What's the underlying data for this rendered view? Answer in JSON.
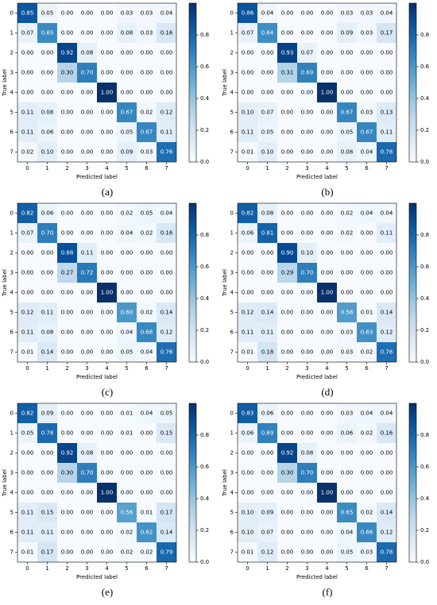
{
  "chart_data": [
    {
      "type": "heatmap",
      "caption": "(a)",
      "xlabel": "Predicted label",
      "ylabel": "True label",
      "x_categories": [
        "0",
        "1",
        "2",
        "3",
        "4",
        "5",
        "6",
        "7"
      ],
      "y_categories": [
        "0",
        "1",
        "2",
        "3",
        "4",
        "5",
        "6",
        "7"
      ],
      "colormap": "Blues",
      "clim": [
        0,
        1
      ],
      "cticks": [
        {
          "value": 0,
          "label": "0.0"
        },
        0.2,
        0.4,
        0.6,
        0.8
      ],
      "values": [
        [
          0.85,
          0.05,
          0,
          0,
          0,
          0.03,
          0.03,
          0.04
        ],
        [
          0.07,
          0.65,
          0,
          0,
          0,
          0.08,
          0.03,
          0.16
        ],
        [
          0,
          0,
          0.92,
          0.08,
          0,
          0,
          0,
          0
        ],
        [
          0,
          0,
          0.3,
          0.7,
          0,
          0,
          0,
          0
        ],
        [
          0,
          0,
          0,
          0,
          1,
          0,
          0,
          0
        ],
        [
          0.11,
          0.08,
          0,
          0,
          0,
          0.67,
          0.02,
          0.12
        ],
        [
          0.11,
          0.06,
          0,
          0,
          0,
          0.05,
          0.67,
          0.11
        ],
        [
          0.02,
          0.1,
          0,
          0,
          0,
          0.09,
          0.03,
          0.76
        ]
      ],
      "value_labels": [
        [
          "0.85",
          "0.05",
          "0.00",
          "0.00",
          "0.00",
          "0.03",
          "0.03",
          "0.04"
        ],
        [
          "0.07",
          "0.65",
          "0.00",
          "0.00",
          "0.00",
          "0.08",
          "0.03",
          "0.16"
        ],
        [
          "0.00",
          "0.00",
          "0.92",
          "0.08",
          "0.00",
          "0.00",
          "0.00",
          "0.00"
        ],
        [
          "0.00",
          "0.00",
          "0.30",
          "0.70",
          "0.00",
          "0.00",
          "0.00",
          "0.00"
        ],
        [
          "0.00",
          "0.00",
          "0.00",
          "0.00",
          "1.00",
          "0.00",
          "0.00",
          "0.00"
        ],
        [
          "0.11",
          "0.08",
          "0.00",
          "0.00",
          "0.00",
          "0.67",
          "0.02",
          "0.12"
        ],
        [
          "0.11",
          "0.06",
          "0.00",
          "0.00",
          "0.00",
          "0.05",
          "0.67",
          "0.11"
        ],
        [
          "0.02",
          "0.10",
          "0.00",
          "0.00",
          "0.00",
          "0.09",
          "0.03",
          "0.76"
        ]
      ]
    },
    {
      "type": "heatmap",
      "caption": "(b)",
      "xlabel": "Predicted label",
      "ylabel": "True label",
      "x_categories": [
        "0",
        "1",
        "2",
        "3",
        "4",
        "5",
        "6",
        "7"
      ],
      "y_categories": [
        "0",
        "1",
        "2",
        "3",
        "4",
        "5",
        "6",
        "7"
      ],
      "colormap": "Blues",
      "clim": [
        0,
        1
      ],
      "cticks": [
        {
          "value": 0,
          "label": "0.0"
        },
        0.2,
        0.4,
        0.6,
        0.8
      ],
      "values": [
        [
          0.86,
          0.04,
          0,
          0,
          0,
          0.03,
          0.03,
          0.04
        ],
        [
          0.07,
          0.64,
          0,
          0,
          0,
          0.09,
          0.03,
          0.17
        ],
        [
          0,
          0,
          0.93,
          0.07,
          0,
          0,
          0,
          0
        ],
        [
          0,
          0,
          0.31,
          0.69,
          0,
          0,
          0,
          0
        ],
        [
          0,
          0,
          0,
          0,
          1,
          0,
          0,
          0
        ],
        [
          0.1,
          0.07,
          0,
          0,
          0,
          0.67,
          0.03,
          0.13
        ],
        [
          0.11,
          0.05,
          0,
          0,
          0,
          0.05,
          0.67,
          0.11
        ],
        [
          0.01,
          0.1,
          0,
          0,
          0,
          0.08,
          0.04,
          0.78
        ]
      ],
      "value_labels": [
        [
          "0.86",
          "0.04",
          "0.00",
          "0.00",
          "0.00",
          "0.03",
          "0.03",
          "0.04"
        ],
        [
          "0.07",
          "0.64",
          "0.00",
          "0.00",
          "0.00",
          "0.09",
          "0.03",
          "0.17"
        ],
        [
          "0.00",
          "0.00",
          "0.93",
          "0.07",
          "0.00",
          "0.00",
          "0.00",
          "0.00"
        ],
        [
          "0.00",
          "0.00",
          "0.31",
          "0.69",
          "0.00",
          "0.00",
          "0.00",
          "0.00"
        ],
        [
          "0.00",
          "0.00",
          "0.00",
          "0.00",
          "1.00",
          "0.00",
          "0.00",
          "0.00"
        ],
        [
          "0.10",
          "0.07",
          "0.00",
          "0.00",
          "0.00",
          "0.67",
          "0.03",
          "0.13"
        ],
        [
          "0.11",
          "0.05",
          "0.00",
          "0.00",
          "0.00",
          "0.05",
          "0.67",
          "0.11"
        ],
        [
          "0.01",
          "0.10",
          "0.00",
          "0.00",
          "0.00",
          "0.08",
          "0.04",
          "0.78"
        ]
      ]
    },
    {
      "type": "heatmap",
      "caption": "(c)",
      "xlabel": "Predicted label",
      "ylabel": "True label",
      "x_categories": [
        "0",
        "1",
        "2",
        "3",
        "4",
        "5",
        "6",
        "7"
      ],
      "y_categories": [
        "0",
        "1",
        "2",
        "3",
        "4",
        "5",
        "6",
        "7"
      ],
      "colormap": "Blues",
      "clim": [
        0,
        1
      ],
      "cticks": [
        {
          "value": 0,
          "label": "0.0"
        },
        0.2,
        0.4,
        0.6,
        0.8
      ],
      "values": [
        [
          0.82,
          0.06,
          0,
          0,
          0,
          0.02,
          0.05,
          0.04
        ],
        [
          0.07,
          0.7,
          0,
          0,
          0,
          0.04,
          0.02,
          0.16
        ],
        [
          0,
          0,
          0.88,
          0.11,
          0,
          0,
          0,
          0
        ],
        [
          0,
          0,
          0.27,
          0.72,
          0,
          0,
          0,
          0
        ],
        [
          0,
          0,
          0,
          0,
          1,
          0,
          0,
          0
        ],
        [
          0.12,
          0.11,
          0,
          0,
          0,
          0.6,
          0.02,
          0.14
        ],
        [
          0.11,
          0.08,
          0,
          0,
          0,
          0.04,
          0.66,
          0.12
        ],
        [
          0.01,
          0.14,
          0,
          0,
          0,
          0.05,
          0.04,
          0.76
        ]
      ],
      "value_labels": [
        [
          "0.82",
          "0.06",
          "0.00",
          "0.00",
          "0.00",
          "0.02",
          "0.05",
          "0.04"
        ],
        [
          "0.07",
          "0.70",
          "0.00",
          "0.00",
          "0.00",
          "0.04",
          "0.02",
          "0.16"
        ],
        [
          "0.00",
          "0.00",
          "0.88",
          "0.11",
          "0.00",
          "0.00",
          "0.00",
          "0.00"
        ],
        [
          "0.00",
          "0.00",
          "0.27",
          "0.72",
          "0.00",
          "0.00",
          "0.00",
          "0.00"
        ],
        [
          "0.00",
          "0.00",
          "0.00",
          "0.00",
          "1.00",
          "0.00",
          "0.00",
          "0.00"
        ],
        [
          "0.12",
          "0.11",
          "0.00",
          "0.00",
          "0.00",
          "0.60",
          "0.02",
          "0.14"
        ],
        [
          "0.11",
          "0.08",
          "0.00",
          "0.00",
          "0.00",
          "0.04",
          "0.66",
          "0.12"
        ],
        [
          "0.01",
          "0.14",
          "0.00",
          "0.00",
          "0.00",
          "0.05",
          "0.04",
          "0.76"
        ]
      ]
    },
    {
      "type": "heatmap",
      "caption": "(d)",
      "xlabel": "Predicted label",
      "ylabel": "True label",
      "x_categories": [
        "0",
        "1",
        "2",
        "3",
        "4",
        "5",
        "6",
        "7"
      ],
      "y_categories": [
        "0",
        "1",
        "2",
        "3",
        "4",
        "5",
        "6",
        "7"
      ],
      "colormap": "Blues",
      "clim": [
        0,
        1
      ],
      "cticks": [
        {
          "value": 0,
          "label": "0.0"
        },
        0.2,
        0.4,
        0.6,
        0.8
      ],
      "values": [
        [
          0.82,
          0.08,
          0,
          0,
          0,
          0.02,
          0.04,
          0.04
        ],
        [
          0.06,
          0.81,
          0,
          0,
          0,
          0.02,
          0,
          0.11
        ],
        [
          0,
          0,
          0.9,
          0.1,
          0,
          0,
          0,
          0
        ],
        [
          0,
          0,
          0.29,
          0.7,
          0,
          0,
          0,
          0
        ],
        [
          0,
          0,
          0,
          0,
          1,
          0,
          0,
          0
        ],
        [
          0.12,
          0.14,
          0,
          0,
          0,
          0.58,
          0.01,
          0.14
        ],
        [
          0.11,
          0.11,
          0,
          0,
          0,
          0.03,
          0.63,
          0.12
        ],
        [
          0.01,
          0.18,
          0,
          0,
          0,
          0.03,
          0.02,
          0.76
        ]
      ],
      "value_labels": [
        [
          "0.82",
          "0.08",
          "0.00",
          "0.00",
          "0.00",
          "0.02",
          "0.04",
          "0.04"
        ],
        [
          "0.06",
          "0.81",
          "0.00",
          "0.00",
          "0.00",
          "0.02",
          "0.00",
          "0.11"
        ],
        [
          "0.00",
          "0.00",
          "0.90",
          "0.10",
          "0.00",
          "0.00",
          "0.00",
          "0.00"
        ],
        [
          "0.00",
          "0.00",
          "0.29",
          "0.70",
          "0.00",
          "0.00",
          "0.00",
          "0.00"
        ],
        [
          "0.00",
          "0.00",
          "0.00",
          "0.00",
          "1.00",
          "0.00",
          "0.00",
          "0.00"
        ],
        [
          "0.12",
          "0.14",
          "0.00",
          "0.00",
          "0.00",
          "0.58",
          "0.01",
          "0.14"
        ],
        [
          "0.11",
          "0.11",
          "0.00",
          "0.00",
          "0.00",
          "0.03",
          "0.63",
          "0.12"
        ],
        [
          "0.01",
          "0.18",
          "0.00",
          "0.00",
          "0.00",
          "0.03",
          "0.02",
          "0.76"
        ]
      ]
    },
    {
      "type": "heatmap",
      "caption": "(e)",
      "xlabel": "Predicted label",
      "ylabel": "True label",
      "x_categories": [
        "0",
        "1",
        "2",
        "3",
        "4",
        "5",
        "6",
        "7"
      ],
      "y_categories": [
        "0",
        "1",
        "2",
        "3",
        "4",
        "5",
        "6",
        "7"
      ],
      "colormap": "Blues",
      "clim": [
        0,
        1
      ],
      "cticks": [
        {
          "value": 0,
          "label": "0.0"
        },
        0.2,
        0.4,
        0.6,
        0.8
      ],
      "values": [
        [
          0.82,
          0.09,
          0,
          0,
          0,
          0.01,
          0.04,
          0.05
        ],
        [
          0.05,
          0.78,
          0,
          0,
          0,
          0.01,
          0,
          0.15
        ],
        [
          0,
          0,
          0.92,
          0.08,
          0,
          0,
          0,
          0
        ],
        [
          0,
          0,
          0.3,
          0.7,
          0,
          0,
          0,
          0
        ],
        [
          0,
          0,
          0,
          0,
          1,
          0,
          0,
          0
        ],
        [
          0.11,
          0.15,
          0,
          0,
          0,
          0.56,
          0.01,
          0.17
        ],
        [
          0.11,
          0.11,
          0,
          0,
          0,
          0.02,
          0.62,
          0.14
        ],
        [
          0.01,
          0.17,
          0,
          0,
          0,
          0.02,
          0.02,
          0.79
        ]
      ],
      "value_labels": [
        [
          "0.82",
          "0.09",
          "0.00",
          "0.00",
          "0.00",
          "0.01",
          "0.04",
          "0.05"
        ],
        [
          "0.05",
          "0.78",
          "0.00",
          "0.00",
          "0.00",
          "0.01",
          "0.00",
          "0.15"
        ],
        [
          "0.00",
          "0.00",
          "0.92",
          "0.08",
          "0.00",
          "0.00",
          "0.00",
          "0.00"
        ],
        [
          "0.00",
          "0.00",
          "0.30",
          "0.70",
          "0.00",
          "0.00",
          "0.00",
          "0.00"
        ],
        [
          "0.00",
          "0.00",
          "0.00",
          "0.00",
          "1.00",
          "0.00",
          "0.00",
          "0.00"
        ],
        [
          "0.11",
          "0.15",
          "0.00",
          "0.00",
          "0.00",
          "0.56",
          "0.01",
          "0.17"
        ],
        [
          "0.11",
          "0.11",
          "0.00",
          "0.00",
          "0.00",
          "0.02",
          "0.62",
          "0.14"
        ],
        [
          "0.01",
          "0.17",
          "0.00",
          "0.00",
          "0.00",
          "0.02",
          "0.02",
          "0.79"
        ]
      ]
    },
    {
      "type": "heatmap",
      "caption": "(f)",
      "xlabel": "Predicted label",
      "ylabel": "True label",
      "x_categories": [
        "0",
        "1",
        "2",
        "3",
        "4",
        "5",
        "6",
        "7"
      ],
      "y_categories": [
        "0",
        "1",
        "2",
        "3",
        "4",
        "5",
        "6",
        "7"
      ],
      "colormap": "Blues",
      "clim": [
        0,
        1
      ],
      "cticks": [
        {
          "value": 0,
          "label": "0.0"
        },
        0.2,
        0.4,
        0.6,
        0.8
      ],
      "values": [
        [
          0.83,
          0.06,
          0,
          0,
          0,
          0.03,
          0.04,
          0.04
        ],
        [
          0.06,
          0.69,
          0,
          0,
          0,
          0.06,
          0.02,
          0.16
        ],
        [
          0,
          0,
          0.92,
          0.08,
          0,
          0,
          0,
          0
        ],
        [
          0,
          0,
          0.3,
          0.7,
          0,
          0,
          0,
          0
        ],
        [
          0,
          0,
          0,
          0,
          1,
          0,
          0,
          0
        ],
        [
          0.1,
          0.09,
          0,
          0,
          0,
          0.65,
          0.02,
          0.14
        ],
        [
          0.1,
          0.07,
          0,
          0,
          0,
          0.04,
          0.66,
          0.12
        ],
        [
          0.01,
          0.12,
          0,
          0,
          0,
          0.05,
          0.03,
          0.78
        ]
      ],
      "value_labels": [
        [
          "0.83",
          "0.06",
          "0.00",
          "0.00",
          "0.00",
          "0.03",
          "0.04",
          "0.04"
        ],
        [
          "0.06",
          "0.69",
          "0.00",
          "0.00",
          "0.00",
          "0.06",
          "0.02",
          "0.16"
        ],
        [
          "0.00",
          "0.00",
          "0.92",
          "0.08",
          "0.00",
          "0.00",
          "0.00",
          "0.00"
        ],
        [
          "0.00",
          "0.00",
          "0.30",
          "0.70",
          "0.00",
          "0.00",
          "0.00",
          "0.00"
        ],
        [
          "0.00",
          "0.00",
          "0.00",
          "0.00",
          "1.00",
          "0.00",
          "0.00",
          "0.00"
        ],
        [
          "0.10",
          "0.09",
          "0.00",
          "0.00",
          "0.00",
          "0.65",
          "0.02",
          "0.14"
        ],
        [
          "0.10",
          "0.07",
          "0.00",
          "0.00",
          "0.00",
          "0.04",
          "0.66",
          "0.12"
        ],
        [
          "0.01",
          "0.12",
          "0.00",
          "0.00",
          "0.00",
          "0.05",
          "0.03",
          "0.78"
        ]
      ]
    }
  ]
}
